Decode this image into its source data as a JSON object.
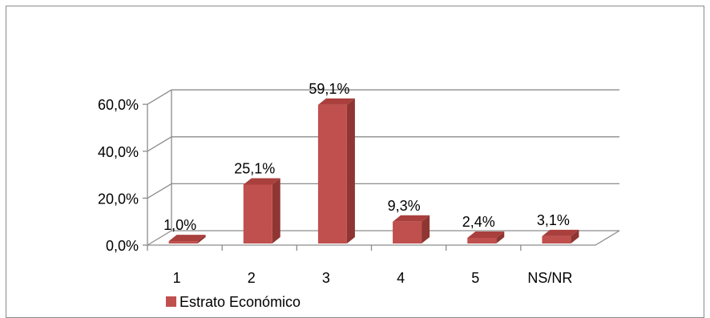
{
  "chart_data": {
    "type": "bar",
    "categories": [
      "1",
      "2",
      "3",
      "4",
      "5",
      "NS/NR"
    ],
    "series": [
      {
        "name": "Estrato Económico",
        "values": [
          1.0,
          25.1,
          59.1,
          9.3,
          2.4,
          3.1
        ],
        "data_labels": [
          "1,0%",
          "25,1%",
          "59,1%",
          "9,3%",
          "2,4%",
          "3,1%"
        ],
        "color": "#c0504d"
      }
    ],
    "y_ticks": [
      "0,0%",
      "20,0%",
      "40,0%",
      "60,0%"
    ],
    "ylim": [
      0,
      60
    ],
    "grid": true,
    "legend_position": "bottom-left",
    "style": "3d-column"
  }
}
